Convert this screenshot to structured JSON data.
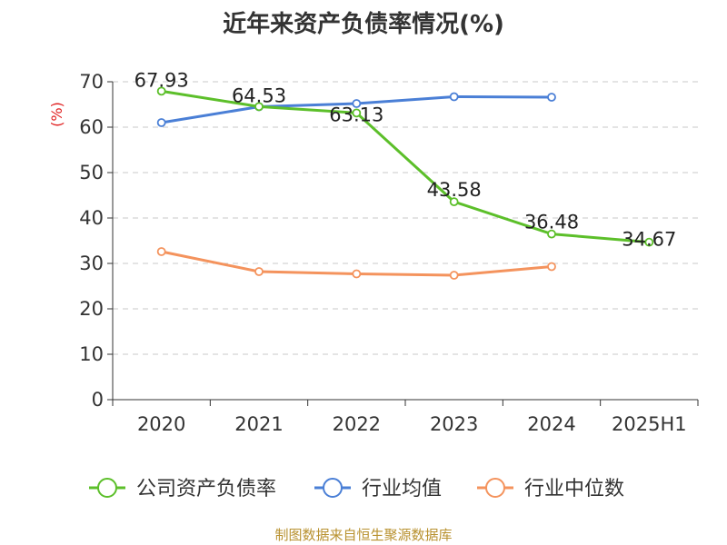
{
  "title": "近年来资产负债率情况(%)",
  "footer": "制图数据来自恒生聚源数据库",
  "chart_data": {
    "type": "line",
    "title": "近年来资产负债率情况(%)",
    "ylabel": "(%)",
    "ylim": [
      0,
      70
    ],
    "yticks": [
      0,
      10,
      20,
      30,
      40,
      50,
      60,
      70
    ],
    "categories": [
      "2020",
      "2021",
      "2022",
      "2023",
      "2024",
      "2025H1"
    ],
    "grid": true,
    "legend_position": "bottom",
    "series": [
      {
        "name": "公司资产负债率",
        "color": "#5cbf2a",
        "values": [
          67.93,
          64.53,
          63.13,
          43.58,
          36.48,
          34.67
        ],
        "labels": [
          "67.93",
          "64.53",
          "63.13",
          "43.58",
          "36.48",
          "34.67"
        ]
      },
      {
        "name": "行业均值",
        "color": "#4a7fd6",
        "values": [
          61.0,
          64.5,
          65.2,
          66.7,
          66.6,
          null
        ]
      },
      {
        "name": "行业中位数",
        "color": "#f4935d",
        "values": [
          32.6,
          28.2,
          27.7,
          27.4,
          29.3,
          null
        ]
      }
    ]
  }
}
